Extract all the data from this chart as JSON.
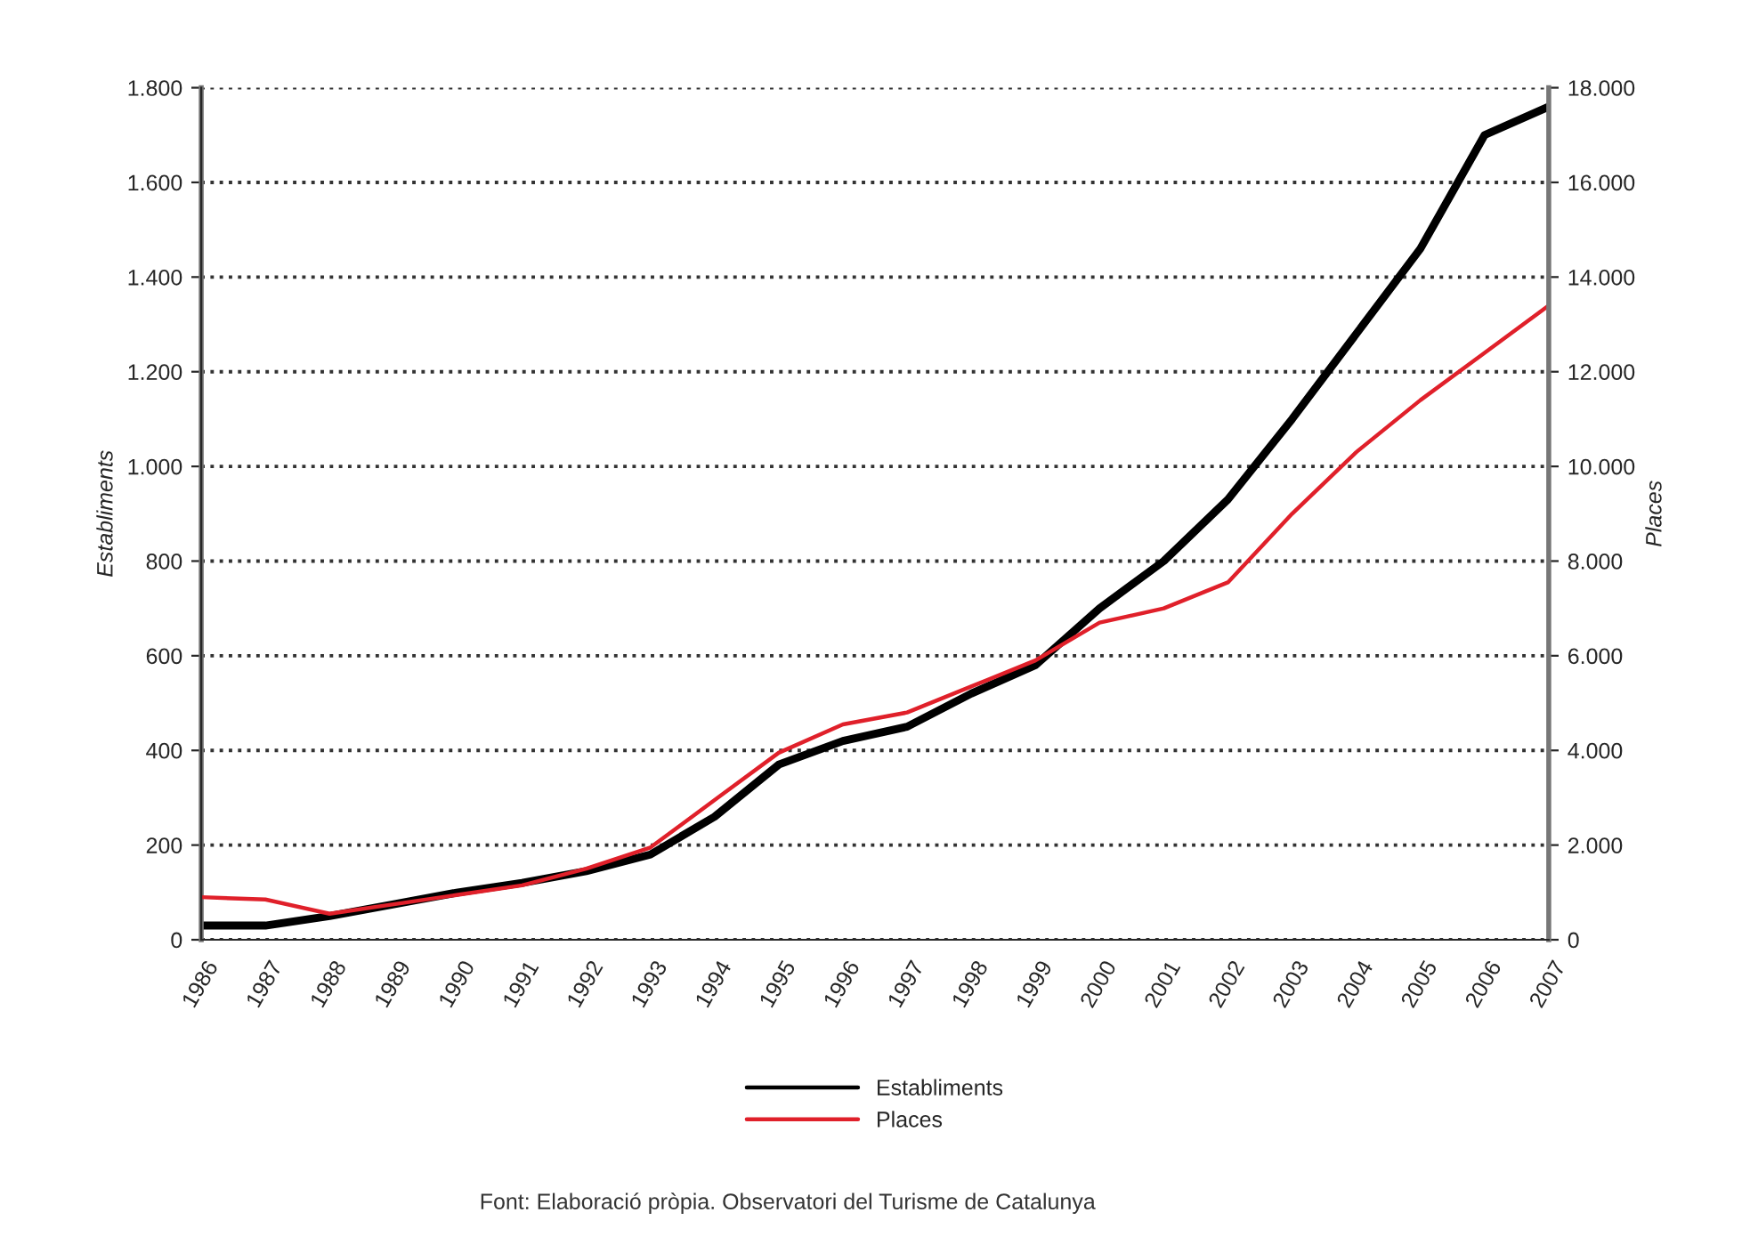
{
  "chart_data": {
    "type": "line",
    "categories": [
      "1986",
      "1987",
      "1988",
      "1989",
      "1990",
      "1991",
      "1992",
      "1993",
      "1994",
      "1995",
      "1996",
      "1997",
      "1998",
      "1999",
      "2000",
      "2001",
      "2002",
      "2003",
      "2004",
      "2005",
      "2006",
      "2007"
    ],
    "series": [
      {
        "name": "Establiments",
        "color": "#000000",
        "values": [
          30,
          30,
          50,
          75,
          100,
          120,
          145,
          180,
          260,
          370,
          420,
          450,
          520,
          580,
          700,
          800,
          930,
          1100,
          1280,
          1460,
          1700,
          1760
        ]
      },
      {
        "name": "Places",
        "color": "#e0202a",
        "axis": "y2",
        "values": [
          900,
          850,
          550,
          750,
          950,
          1150,
          1500,
          1950,
          2950,
          3950,
          4550,
          4800,
          5350,
          5900,
          6700,
          7000,
          7550,
          9000,
          10300,
          11400,
          12400,
          13400
        ]
      }
    ],
    "ylabel": "Establiments",
    "y2label": "Places",
    "ylim": [
      0,
      1800
    ],
    "yticks": [
      0,
      200,
      400,
      600,
      800,
      {
        "value": 1000,
        "label": "1.000"
      },
      {
        "value": 1200,
        "label": "1.200"
      },
      {
        "value": 1400,
        "label": "1.400"
      },
      {
        "value": 1600,
        "label": "1.600"
      },
      {
        "value": 1800,
        "label": "1.800"
      }
    ],
    "y2lim": [
      0,
      18000
    ],
    "y2ticks": [
      0,
      {
        "value": 2000,
        "label": "2.000"
      },
      {
        "value": 4000,
        "label": "4.000"
      },
      {
        "value": 6000,
        "label": "6.000"
      },
      {
        "value": 8000,
        "label": "8.000"
      },
      {
        "value": 10000,
        "label": "10.000"
      },
      {
        "value": 12000,
        "label": "12.000"
      },
      {
        "value": 14000,
        "label": "14.000"
      },
      {
        "value": 16000,
        "label": "16.000"
      },
      {
        "value": 18000,
        "label": "18.000"
      }
    ],
    "grid": "y",
    "legend": "bottom",
    "line_style": "solid",
    "marker": "none",
    "annotations": [
      "Font: Elaboració pròpia. Observatori del Turisme de Catalunya"
    ]
  }
}
